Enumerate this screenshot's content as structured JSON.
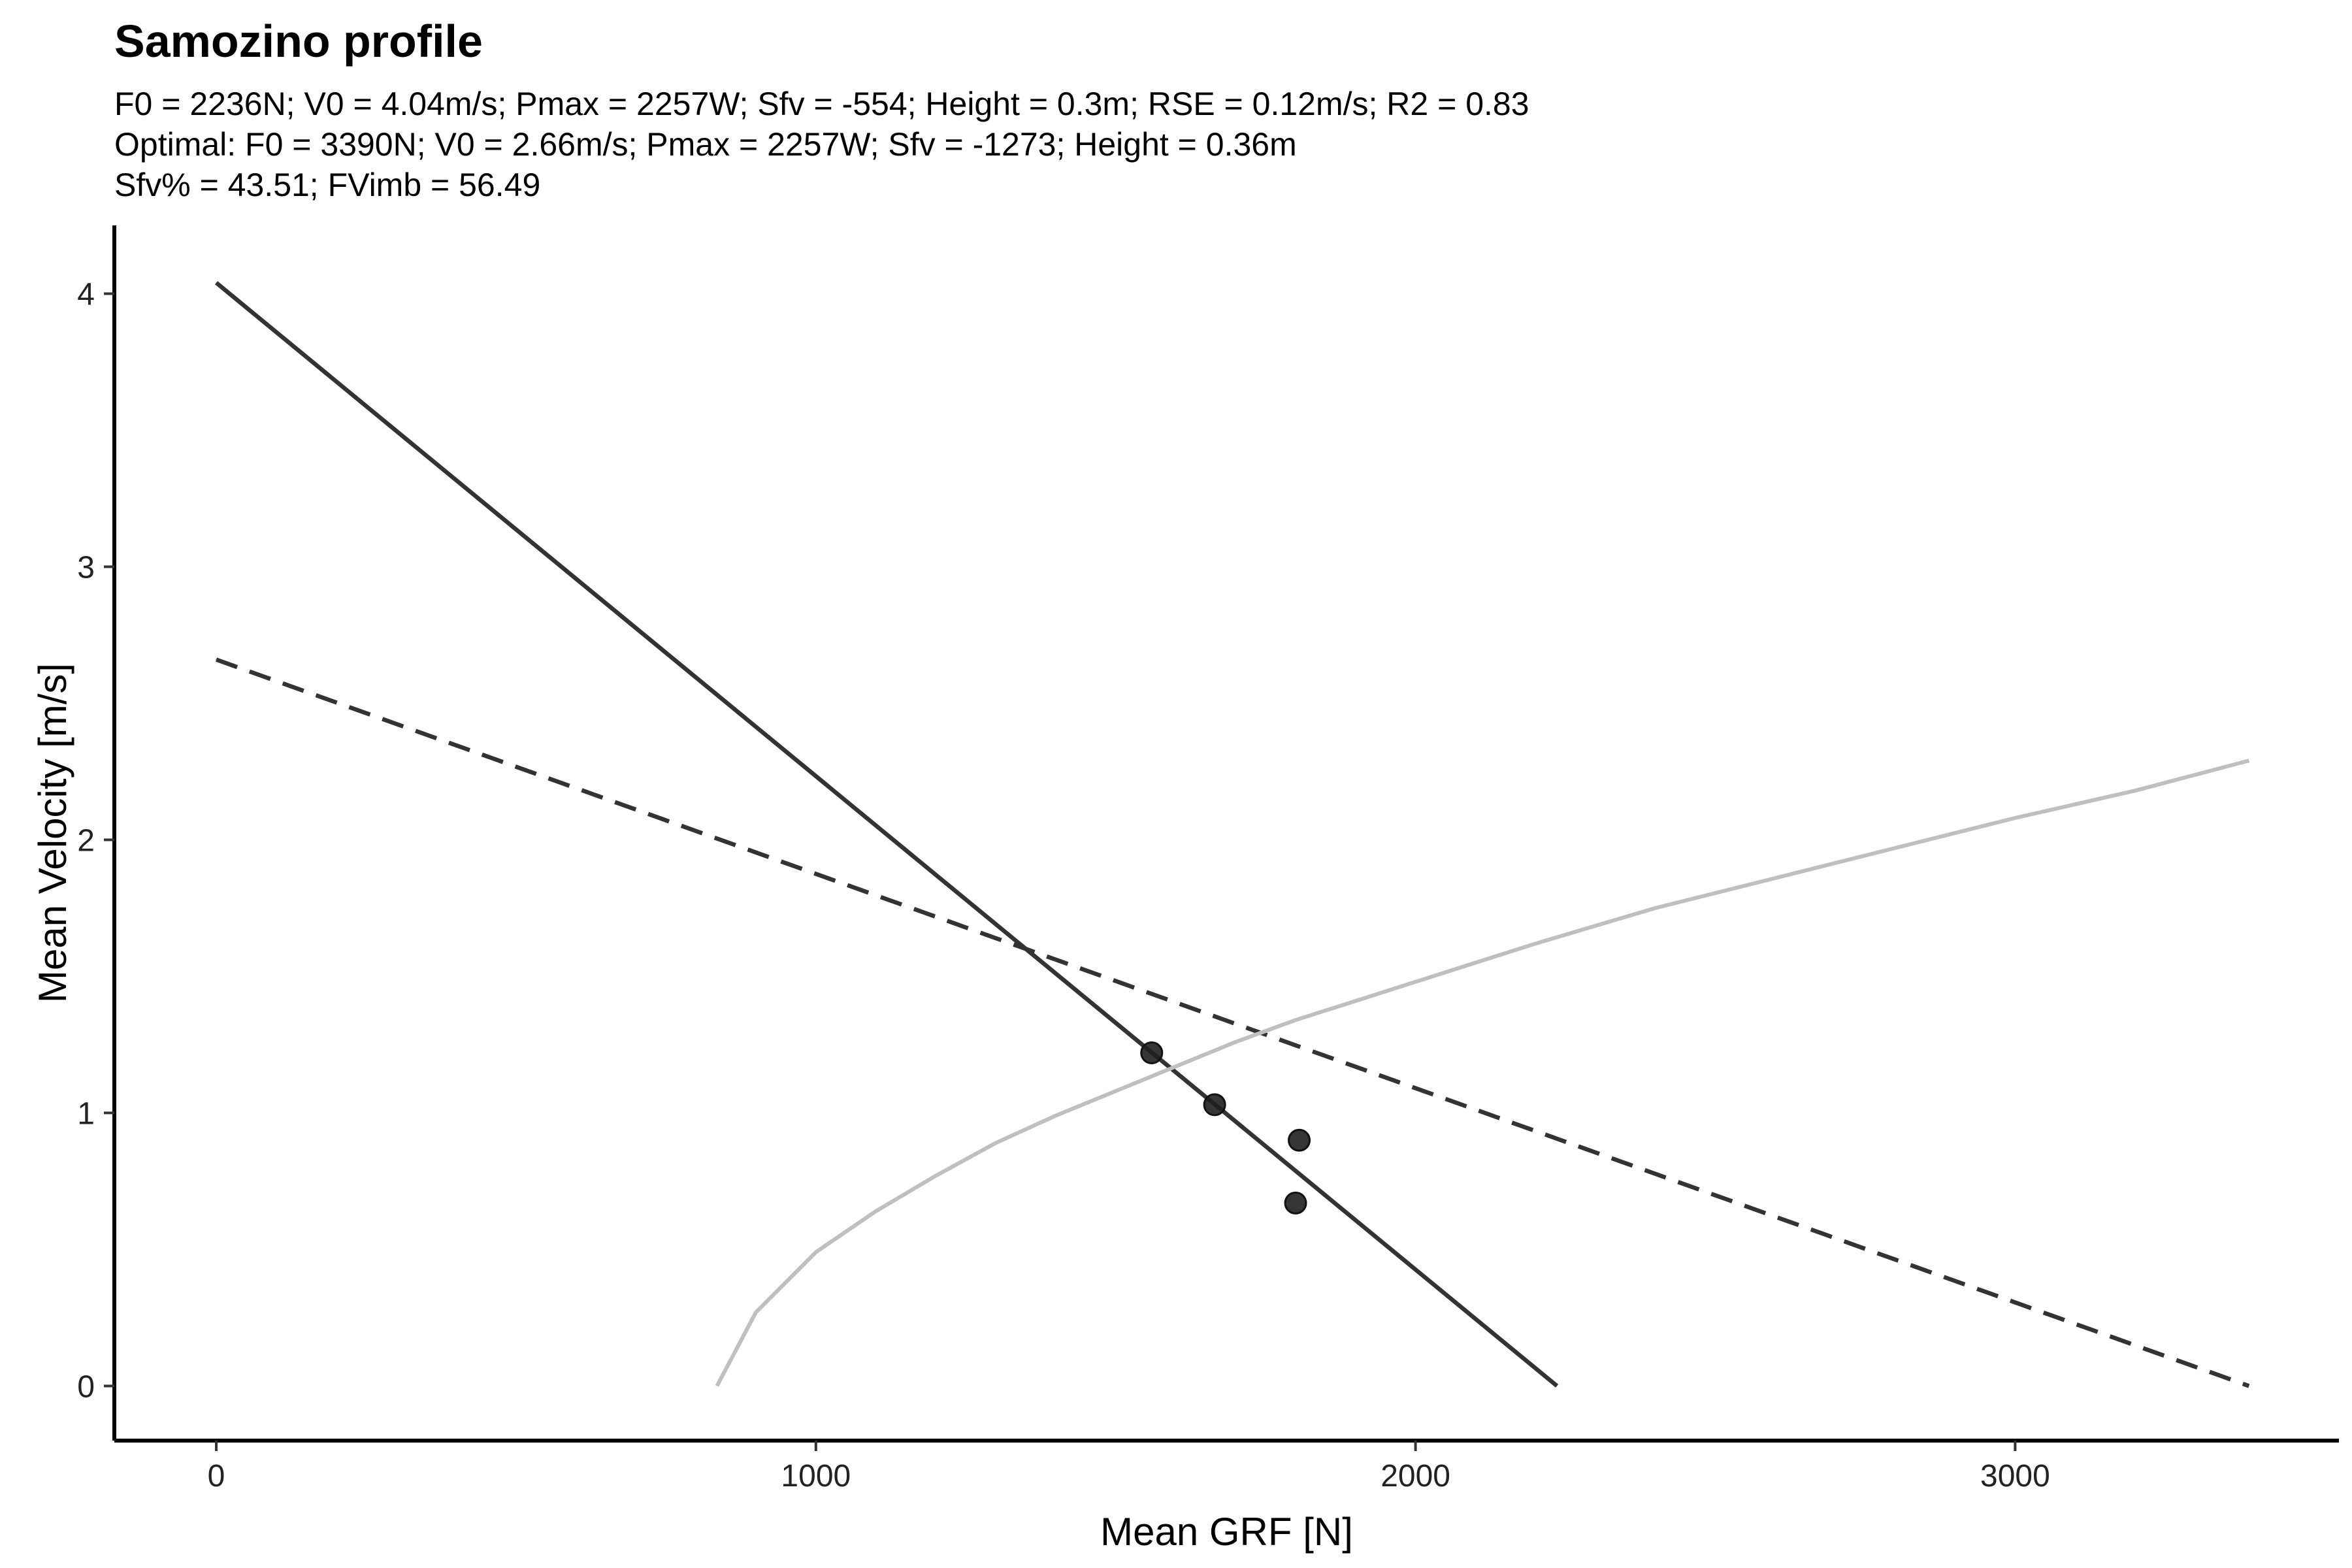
{
  "chart_data": {
    "type": "line",
    "title": "Samozino profile",
    "subtitle_lines": [
      "F0 = 2236N; V0 = 4.04m/s; Pmax = 2257W; Sfv = -554; Height = 0.3m; RSE = 0.12m/s; R2 = 0.83",
      "Optimal: F0 = 3390N; V0 = 2.66m/s; Pmax = 2257W; Sfv = -1273; Height = 0.36m",
      "Sfv% = 43.51; FVimb = 56.49"
    ],
    "xlabel": "Mean GRF [N]",
    "ylabel": "Mean Velocity [m/s]",
    "xlim": [
      -170,
      3540
    ],
    "ylim": [
      -0.2,
      4.25
    ],
    "x_ticks": [
      0,
      1000,
      2000,
      3000
    ],
    "y_ticks": [
      0,
      1,
      2,
      3,
      4
    ],
    "grid": false,
    "series": [
      {
        "style": "solid",
        "color": "#333333",
        "x": [
          0,
          2236
        ],
        "y": [
          4.04,
          0
        ]
      },
      {
        "style": "dashed",
        "color": "#333333",
        "x": [
          0,
          3390
        ],
        "y": [
          2.66,
          0
        ]
      },
      {
        "style": "curve",
        "color": "#bfbfbf",
        "x": [
          835,
          900,
          1000,
          1100,
          1200,
          1300,
          1400,
          1500,
          1600,
          1700,
          1800,
          1900,
          2000,
          2200,
          2400,
          2600,
          2800,
          3000,
          3200,
          3390
        ],
        "y": [
          0,
          0.27,
          0.49,
          0.64,
          0.77,
          0.89,
          0.99,
          1.08,
          1.17,
          1.26,
          1.34,
          1.41,
          1.48,
          1.62,
          1.75,
          1.86,
          1.97,
          2.08,
          2.18,
          2.29
        ]
      }
    ],
    "points": [
      {
        "x": 1560,
        "y": 1.22
      },
      {
        "x": 1665,
        "y": 1.03
      },
      {
        "x": 1806,
        "y": 0.9
      },
      {
        "x": 1800,
        "y": 0.67
      }
    ]
  }
}
